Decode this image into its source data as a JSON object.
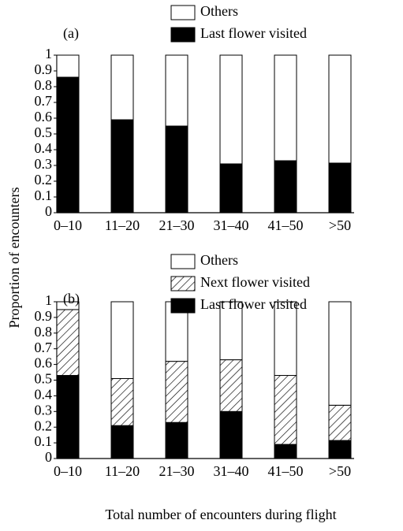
{
  "chart_data": [
    {
      "type": "stacked_bar",
      "panel": "(a)",
      "ylabel": "Proportion of encounters",
      "categories": [
        "0–10",
        "11–20",
        "21–30",
        "31–40",
        "41–50",
        ">50"
      ],
      "series": [
        {
          "name": "Last flower visited",
          "color": "#000000",
          "hatch": false,
          "values": [
            0.86,
            0.59,
            0.55,
            0.31,
            0.33,
            0.315
          ]
        },
        {
          "name": "Others",
          "color": "#ffffff",
          "hatch": false,
          "values": [
            0.14,
            0.41,
            0.45,
            0.69,
            0.67,
            0.685
          ]
        }
      ],
      "ylim": [
        0,
        1
      ],
      "yticks": [
        0,
        0.1,
        0.2,
        0.3,
        0.4,
        0.5,
        0.6,
        0.7,
        0.8,
        0.9,
        1
      ]
    },
    {
      "type": "stacked_bar",
      "panel": "(b)",
      "xlabel": "Total number of encounters during flight",
      "categories": [
        "0–10",
        "11–20",
        "21–30",
        "31–40",
        "41–50",
        ">50"
      ],
      "series": [
        {
          "name": "Last flower visited",
          "color": "#000000",
          "hatch": false,
          "values": [
            0.53,
            0.21,
            0.23,
            0.3,
            0.09,
            0.115
          ]
        },
        {
          "name": "Next flower visited",
          "color": "#ffffff",
          "hatch": true,
          "values": [
            0.42,
            0.3,
            0.39,
            0.33,
            0.44,
            0.225
          ]
        },
        {
          "name": "Others",
          "color": "#ffffff",
          "hatch": false,
          "values": [
            0.05,
            0.49,
            0.38,
            0.37,
            0.47,
            0.66
          ]
        }
      ],
      "ylim": [
        0,
        1
      ],
      "yticks": [
        0,
        0.1,
        0.2,
        0.3,
        0.4,
        0.5,
        0.6,
        0.7,
        0.8,
        0.9,
        1
      ]
    }
  ]
}
